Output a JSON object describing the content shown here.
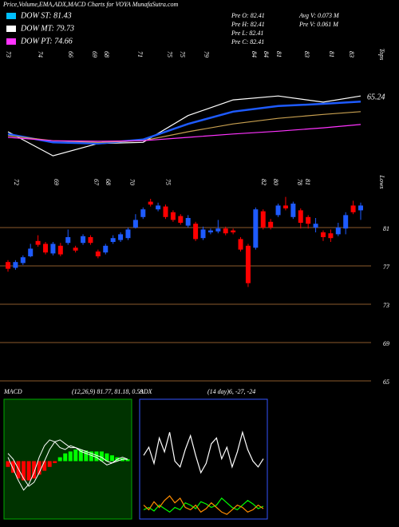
{
  "header": {
    "title": "Price,Volume,EMA,ADX,MACD Charts for VOYA MunafaSutra.com",
    "legend": [
      {
        "label": "DOW ST: 81.43",
        "color": "#00bfff"
      },
      {
        "label": "DOW MT: 79.73",
        "color": "#ffffff"
      },
      {
        "label": "DOW PT: 74.66",
        "color": "#ff33ff"
      }
    ],
    "info": [
      "Pre  O: 82.41",
      "Pre  H: 82.41",
      "Pre  L: 82.41",
      "Pre  C: 82.41",
      "Avg V: 0.073 M",
      "Pre  V: 0.061 M"
    ]
  },
  "chart_data": [
    {
      "type": "line",
      "x": [
        0,
        6,
        12,
        18,
        24,
        30,
        36,
        42,
        47
      ],
      "xlim": [
        0,
        47
      ],
      "ylim": [
        68,
        88
      ],
      "series": [
        {
          "name": "Price",
          "color": "#ffffff",
          "values": [
            73,
            68.7,
            70.9,
            71.1,
            75.9,
            78.7,
            79.4,
            78.3,
            79.4
          ]
        },
        {
          "name": "EMA Short",
          "color": "#1e5bff",
          "values": [
            72.6,
            71.1,
            70.9,
            71.6,
            74.4,
            76.6,
            77.6,
            78,
            78.4
          ]
        },
        {
          "name": "EMA Mid",
          "color": "#c8a050",
          "values": [
            72.3,
            71.4,
            71.1,
            71.4,
            73,
            74.4,
            75.4,
            76.1,
            76.6
          ]
        },
        {
          "name": "EMA Long",
          "color": "#ff33ff",
          "values": [
            72,
            71.4,
            71.3,
            71.4,
            72,
            72.6,
            73.1,
            73.7,
            74.3
          ]
        }
      ],
      "annotation": "65.24",
      "tops": [
        "73",
        "74",
        "66",
        "69",
        "68",
        "71",
        "75",
        "75",
        "79",
        "84",
        "84",
        "81",
        "83",
        "81",
        "83",
        "Tops"
      ]
    },
    {
      "type": "candlestick",
      "xlim": [
        0,
        47
      ],
      "ylim": [
        64,
        85
      ],
      "yticks": [
        81,
        77,
        73,
        69,
        65
      ],
      "grid": true,
      "up_color": "#1e5bff",
      "down_color": "#ff0000",
      "grid_color": "#8b5a2b",
      "open": [
        77.4,
        76.8,
        77.3,
        78.0,
        79.6,
        79.3,
        78.3,
        79.1,
        79.4,
        78.9,
        79.4,
        80.0,
        78.5,
        78.4,
        79.5,
        79.7,
        79.9,
        81.0,
        82.1,
        83.7,
        82.9,
        83.2,
        82.6,
        82.2,
        81.2,
        81.4,
        79.9,
        80.5,
        80.6,
        80.9,
        80.7,
        79.8,
        79.1,
        78.9,
        82.7,
        81.6,
        82.3,
        83.3,
        82.1,
        82.8,
        82.1,
        81.0,
        80.5,
        80.4,
        80.3,
        80.9,
        83.3,
        82.8
      ],
      "high": [
        77.6,
        77.6,
        78.1,
        79.3,
        80.2,
        79.5,
        79.5,
        79.4,
        80.8,
        79.1,
        80.3,
        80.2,
        78.7,
        79.3,
        80.2,
        80.5,
        81.0,
        82.4,
        83.1,
        84.0,
        83.6,
        83.4,
        82.8,
        82.4,
        82.3,
        81.6,
        81.1,
        80.9,
        81.8,
        81.1,
        80.9,
        80.0,
        79.3,
        83.1,
        82.9,
        81.9,
        83.5,
        84.2,
        83.7,
        83.0,
        82.3,
        82.0,
        80.7,
        80.8,
        81.5,
        82.6,
        83.8,
        83.6
      ],
      "low": [
        76.4,
        76.6,
        77.1,
        77.9,
        79.0,
        78.2,
        78.1,
        78.0,
        79.2,
        78.4,
        79.2,
        79.2,
        77.8,
        78.2,
        79.3,
        79.5,
        79.7,
        80.9,
        81.9,
        83.2,
        82.7,
        81.9,
        81.6,
        81.3,
        81.0,
        79.6,
        79.7,
        80.3,
        80.4,
        80.2,
        80.3,
        78.5,
        74.8,
        78.7,
        80.8,
        80.8,
        82.1,
        82.8,
        81.9,
        80.9,
        80.9,
        80.5,
        79.6,
        79.5,
        80.1,
        80.3,
        82.4,
        81.8
      ],
      "close": [
        76.7,
        77.4,
        77.9,
        78.8,
        79.2,
        78.4,
        79.3,
        78.2,
        80.0,
        78.6,
        80.1,
        79.4,
        78.0,
        79.1,
        79.9,
        80.3,
        80.8,
        81.8,
        82.9,
        83.4,
        83.3,
        82.1,
        81.8,
        81.5,
        82.0,
        79.8,
        80.8,
        80.7,
        80.9,
        80.4,
        80.5,
        78.7,
        75.2,
        82.9,
        81.0,
        81.0,
        83.3,
        83.0,
        83.5,
        81.5,
        81.4,
        81.4,
        80.0,
        79.9,
        81.0,
        82.3,
        82.6,
        83.3
      ],
      "lows": [
        "72",
        "69",
        "67",
        "68",
        "70",
        "75",
        "82",
        "80",
        "78",
        "81",
        "Lows"
      ]
    },
    {
      "type": "macd",
      "title": "MACD",
      "subtitle": "(12,26,9) 81.77, 81.18, 0.59",
      "xlim": [
        0,
        23
      ],
      "ylim": [
        -3,
        3
      ],
      "background": "#003300",
      "up_color": "#00ff00",
      "down_color": "#ff0000",
      "line_color": "#ffffff",
      "x": [
        0,
        1,
        2,
        3,
        4,
        5,
        6,
        7,
        8,
        9,
        10,
        11,
        12,
        13,
        14,
        15,
        16,
        17,
        18,
        19,
        20,
        21,
        22,
        23
      ],
      "histogram": [
        -0.3,
        -0.6,
        -0.9,
        -1.0,
        -1.0,
        -0.9,
        -0.7,
        -0.5,
        -0.3,
        -0.1,
        0.2,
        0.4,
        0.5,
        0.6,
        0.6,
        0.55,
        0.5,
        0.5,
        0.5,
        0.4,
        0.3,
        0.2,
        0.15,
        0.1
      ],
      "series": [
        {
          "name": "MACD",
          "values": [
            0.2,
            -0.4,
            -1.0,
            -1.5,
            -1.2,
            -0.6,
            0.2,
            0.8,
            1.1,
            1.0,
            0.7,
            0.6,
            0.8,
            0.7,
            0.5,
            0.4,
            0.3,
            0.2,
            0.0,
            -0.2,
            -0.1,
            0.1,
            0.2,
            0.1
          ]
        },
        {
          "name": "Signal",
          "values": [
            0.4,
            0.1,
            -0.4,
            -0.9,
            -1.3,
            -1.1,
            -0.6,
            0.0,
            0.6,
            1.0,
            1.1,
            0.9,
            0.7,
            0.7,
            0.6,
            0.5,
            0.4,
            0.3,
            0.2,
            0.0,
            -0.1,
            0.0,
            0.1,
            0.1
          ]
        }
      ]
    },
    {
      "type": "line",
      "title": "ADX",
      "subtitle": "(14 day)6, -27, -24",
      "xlim": [
        0,
        23
      ],
      "ylim": [
        0,
        100
      ],
      "x": [
        0,
        1,
        2,
        3,
        4,
        5,
        6,
        7,
        8,
        9,
        10,
        11,
        12,
        13,
        14,
        15,
        16,
        17,
        18,
        19,
        20,
        21,
        22,
        23
      ],
      "series": [
        {
          "name": "ADX",
          "color": "#ffffff",
          "values": [
            55,
            62,
            48,
            70,
            58,
            75,
            50,
            45,
            60,
            72,
            55,
            40,
            48,
            65,
            70,
            52,
            62,
            45,
            58,
            75,
            60,
            50,
            45,
            52
          ]
        },
        {
          "name": "+DI",
          "color": "#00ff00",
          "values": [
            8,
            10,
            7,
            12,
            9,
            6,
            10,
            8,
            14,
            12,
            9,
            15,
            13,
            10,
            12,
            18,
            14,
            10,
            8,
            12,
            16,
            13,
            9,
            11
          ]
        },
        {
          "name": "-DI",
          "color": "#ff8c00",
          "values": [
            12,
            8,
            15,
            10,
            16,
            20,
            14,
            18,
            10,
            8,
            12,
            6,
            9,
            14,
            10,
            6,
            4,
            8,
            12,
            10,
            6,
            8,
            12,
            9
          ]
        }
      ]
    }
  ]
}
